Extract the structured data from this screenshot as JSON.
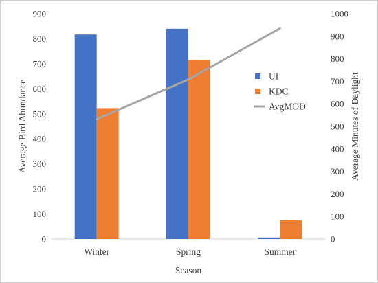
{
  "chart_data": {
    "type": "bar",
    "categories": [
      "Winter",
      "Spring",
      "Summer"
    ],
    "series": [
      {
        "name": "UI",
        "kind": "bar",
        "axis": "left",
        "color": "#4472C4",
        "values": [
          817,
          840,
          6
        ]
      },
      {
        "name": "KDC",
        "kind": "bar",
        "axis": "left",
        "color": "#ED7D31",
        "values": [
          523,
          715,
          74
        ]
      },
      {
        "name": "AvgMOD",
        "kind": "line",
        "axis": "right",
        "color": "#A5A5A5",
        "values": [
          532,
          708,
          935
        ]
      }
    ],
    "title": "",
    "xlabel": "Season",
    "ylabel": "Average Bird Abundance",
    "y2label": "Average Minutes of Daylight",
    "ylim": [
      0,
      900
    ],
    "y2lim": [
      0,
      1000
    ],
    "yticks": [
      0,
      100,
      200,
      300,
      400,
      500,
      600,
      700,
      800,
      900
    ],
    "y2ticks": [
      0,
      100,
      200,
      300,
      400,
      500,
      600,
      700,
      800,
      900,
      1000
    ],
    "grid": false,
    "legend_position": "right"
  }
}
